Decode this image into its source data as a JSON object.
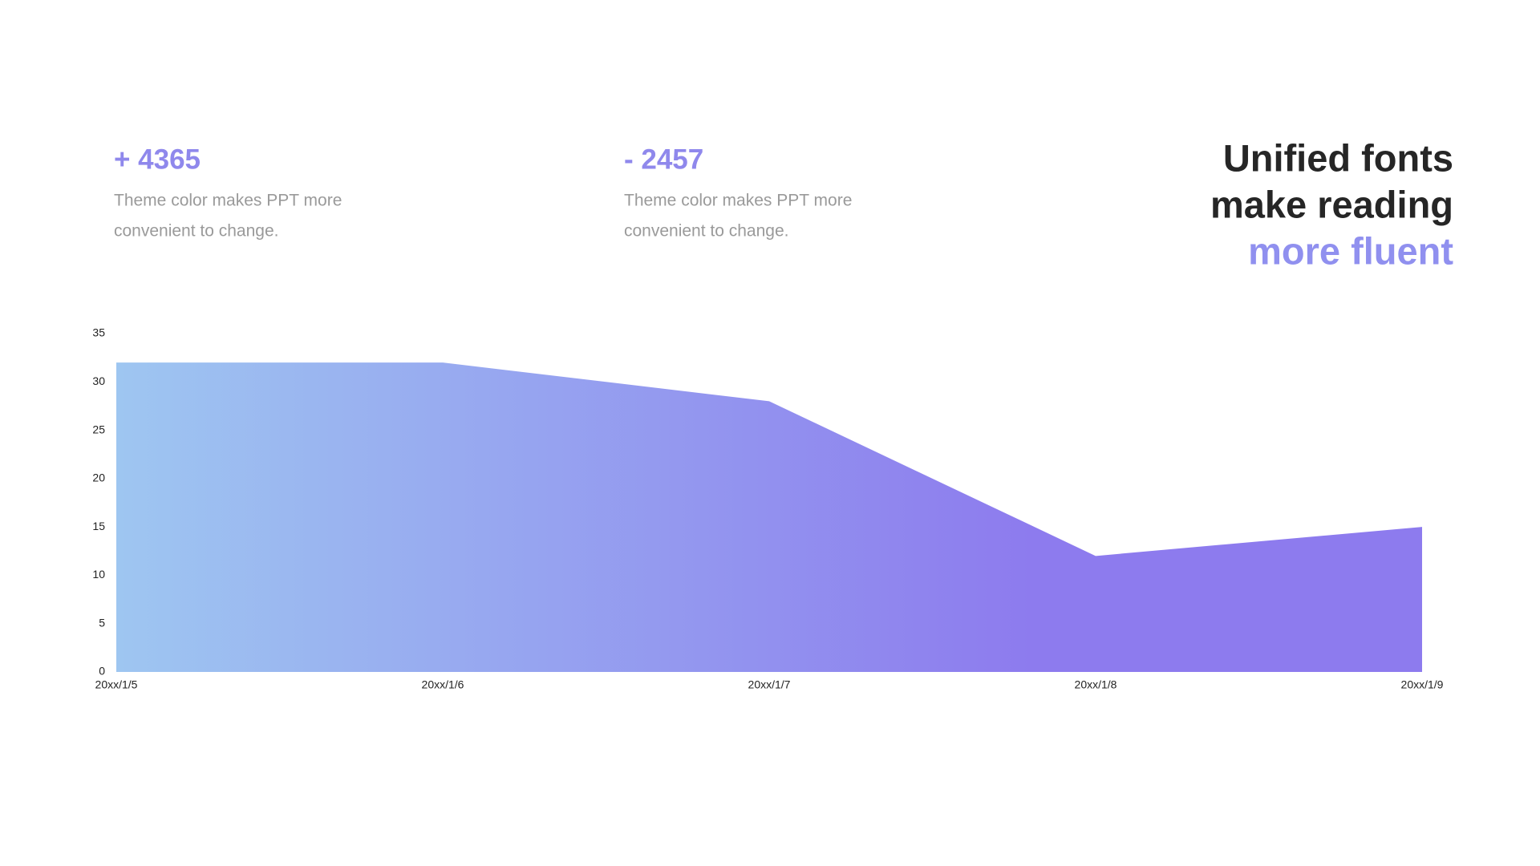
{
  "stats": [
    {
      "value": "+ 4365",
      "text": [
        "Theme color makes PPT more",
        "convenient to change."
      ]
    },
    {
      "value": "- 2457",
      "text": [
        "Theme color makes PPT more",
        "convenient to change."
      ]
    }
  ],
  "headline": {
    "lines": [
      "Unified fonts",
      "make reading"
    ],
    "accent": "more fluent"
  },
  "chart_data": {
    "type": "area",
    "categories": [
      "20xx/1/5",
      "20xx/1/6",
      "20xx/1/7",
      "20xx/1/8",
      "20xx/1/9"
    ],
    "values": [
      32,
      32,
      28,
      12,
      15
    ],
    "gradient": [
      "#9ec6f1",
      "#8d7bee"
    ],
    "ylim": [
      0,
      35
    ],
    "yticks": [
      0,
      5,
      10,
      15,
      20,
      25,
      30,
      35
    ]
  }
}
